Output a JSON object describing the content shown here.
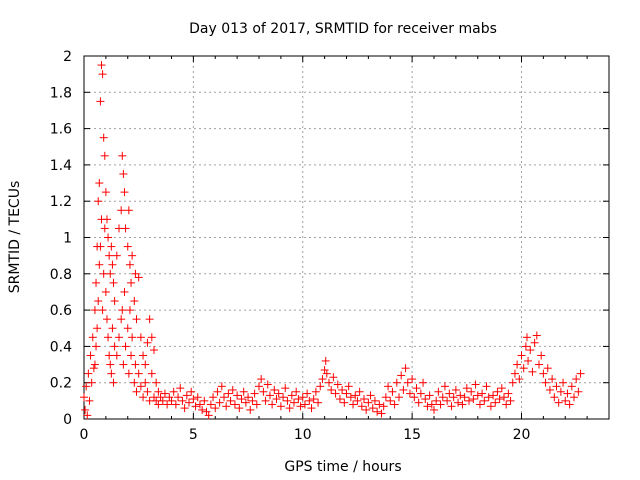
{
  "chart_data": {
    "type": "scatter",
    "title": "Day 013 of 2017, SRMTID for receiver mabs",
    "xlabel": "GPS time / hours",
    "ylabel": "SRMTID / TECUs",
    "xlim": [
      0,
      24
    ],
    "ylim": [
      0,
      2
    ],
    "x_ticks": [
      0,
      5,
      10,
      15,
      20
    ],
    "y_ticks": [
      0,
      0.2,
      0.4,
      0.6,
      0.8,
      1,
      1.2,
      1.4,
      1.6,
      1.8,
      2
    ],
    "x_tick_labels": [
      "0",
      "5",
      "10",
      "15",
      "20"
    ],
    "y_tick_labels": [
      "0",
      "0.2",
      "0.4",
      "0.6",
      "0.8",
      "1",
      "1.2",
      "1.4",
      "1.6",
      "1.8",
      "2"
    ],
    "grid": true,
    "marker": "+",
    "color": "#ff0000",
    "points": [
      [
        0.0,
        0.12
      ],
      [
        0.05,
        0.05
      ],
      [
        0.1,
        0.18
      ],
      [
        0.15,
        0.02
      ],
      [
        0.2,
        0.25
      ],
      [
        0.25,
        0.1
      ],
      [
        0.3,
        0.35
      ],
      [
        0.35,
        0.2
      ],
      [
        0.4,
        0.45
      ],
      [
        0.45,
        0.28
      ],
      [
        0.5,
        0.6
      ],
      [
        0.5,
        0.3
      ],
      [
        0.55,
        0.75
      ],
      [
        0.55,
        0.4
      ],
      [
        0.6,
        0.95
      ],
      [
        0.6,
        0.5
      ],
      [
        0.65,
        1.2
      ],
      [
        0.65,
        0.65
      ],
      [
        0.7,
        1.3
      ],
      [
        0.7,
        0.85
      ],
      [
        0.75,
        1.75
      ],
      [
        0.75,
        0.95
      ],
      [
        0.8,
        1.95
      ],
      [
        0.8,
        1.1
      ],
      [
        0.85,
        1.9
      ],
      [
        0.85,
        0.6
      ],
      [
        0.9,
        1.55
      ],
      [
        0.9,
        0.8
      ],
      [
        0.95,
        1.45
      ],
      [
        0.95,
        1.05
      ],
      [
        1.0,
        1.25
      ],
      [
        1.0,
        0.7
      ],
      [
        1.05,
        1.1
      ],
      [
        1.05,
        0.55
      ],
      [
        1.1,
        1.0
      ],
      [
        1.1,
        0.45
      ],
      [
        1.15,
        0.9
      ],
      [
        1.15,
        0.35
      ],
      [
        1.2,
        0.8
      ],
      [
        1.2,
        0.3
      ],
      [
        1.25,
        0.95
      ],
      [
        1.25,
        0.25
      ],
      [
        1.3,
        0.85
      ],
      [
        1.3,
        0.5
      ],
      [
        1.35,
        0.75
      ],
      [
        1.35,
        0.2
      ],
      [
        1.4,
        0.65
      ],
      [
        1.4,
        0.4
      ],
      [
        1.5,
        0.9
      ],
      [
        1.5,
        0.35
      ],
      [
        1.6,
        1.05
      ],
      [
        1.6,
        0.45
      ],
      [
        1.7,
        1.15
      ],
      [
        1.7,
        0.55
      ],
      [
        1.75,
        1.45
      ],
      [
        1.75,
        0.6
      ],
      [
        1.8,
        1.35
      ],
      [
        1.8,
        0.3
      ],
      [
        1.85,
        1.25
      ],
      [
        1.85,
        0.7
      ],
      [
        1.9,
        1.05
      ],
      [
        1.9,
        0.4
      ],
      [
        2.0,
        0.95
      ],
      [
        2.0,
        0.5
      ],
      [
        2.05,
        1.15
      ],
      [
        2.05,
        0.25
      ],
      [
        2.1,
        0.85
      ],
      [
        2.1,
        0.6
      ],
      [
        2.15,
        0.75
      ],
      [
        2.15,
        0.35
      ],
      [
        2.2,
        0.9
      ],
      [
        2.2,
        0.45
      ],
      [
        2.3,
        0.65
      ],
      [
        2.3,
        0.2
      ],
      [
        2.35,
        0.8
      ],
      [
        2.35,
        0.3
      ],
      [
        2.4,
        0.55
      ],
      [
        2.4,
        0.15
      ],
      [
        2.5,
        0.78
      ],
      [
        2.5,
        0.25
      ],
      [
        2.6,
        0.45
      ],
      [
        2.6,
        0.18
      ],
      [
        2.7,
        0.35
      ],
      [
        2.7,
        0.12
      ],
      [
        2.8,
        0.3
      ],
      [
        2.8,
        0.2
      ],
      [
        2.9,
        0.42
      ],
      [
        2.9,
        0.15
      ],
      [
        3.0,
        0.55
      ],
      [
        3.0,
        0.1
      ],
      [
        3.1,
        0.45
      ],
      [
        3.1,
        0.25
      ],
      [
        3.2,
        0.38
      ],
      [
        3.2,
        0.12
      ],
      [
        3.3,
        0.2
      ],
      [
        3.3,
        0.1
      ],
      [
        3.4,
        0.15
      ],
      [
        3.4,
        0.08
      ],
      [
        3.5,
        0.12
      ],
      [
        3.6,
        0.1
      ],
      [
        3.7,
        0.14
      ],
      [
        3.8,
        0.08
      ],
      [
        3.9,
        0.12
      ],
      [
        4.0,
        0.1
      ],
      [
        4.1,
        0.15
      ],
      [
        4.2,
        0.08
      ],
      [
        4.3,
        0.12
      ],
      [
        4.4,
        0.17
      ],
      [
        4.5,
        0.1
      ],
      [
        4.6,
        0.06
      ],
      [
        4.7,
        0.13
      ],
      [
        4.8,
        0.09
      ],
      [
        4.9,
        0.15
      ],
      [
        5.0,
        0.11
      ],
      [
        5.1,
        0.07
      ],
      [
        5.2,
        0.12
      ],
      [
        5.3,
        0.08
      ],
      [
        5.4,
        0.05
      ],
      [
        5.5,
        0.1
      ],
      [
        5.6,
        0.04
      ],
      [
        5.7,
        0.02
      ],
      [
        5.8,
        0.08
      ],
      [
        5.9,
        0.12
      ],
      [
        6.0,
        0.06
      ],
      [
        6.1,
        0.15
      ],
      [
        6.2,
        0.09
      ],
      [
        6.3,
        0.18
      ],
      [
        6.4,
        0.12
      ],
      [
        6.5,
        0.07
      ],
      [
        6.6,
        0.14
      ],
      [
        6.7,
        0.1
      ],
      [
        6.8,
        0.16
      ],
      [
        6.9,
        0.08
      ],
      [
        7.0,
        0.13
      ],
      [
        7.1,
        0.06
      ],
      [
        7.2,
        0.11
      ],
      [
        7.3,
        0.15
      ],
      [
        7.4,
        0.09
      ],
      [
        7.5,
        0.12
      ],
      [
        7.6,
        0.05
      ],
      [
        7.7,
        0.1
      ],
      [
        7.8,
        0.14
      ],
      [
        7.9,
        0.08
      ],
      [
        8.0,
        0.18
      ],
      [
        8.1,
        0.22
      ],
      [
        8.2,
        0.15
      ],
      [
        8.3,
        0.1
      ],
      [
        8.4,
        0.19
      ],
      [
        8.5,
        0.13
      ],
      [
        8.6,
        0.08
      ],
      [
        8.7,
        0.16
      ],
      [
        8.8,
        0.11
      ],
      [
        8.9,
        0.14
      ],
      [
        9.0,
        0.07
      ],
      [
        9.1,
        0.12
      ],
      [
        9.2,
        0.17
      ],
      [
        9.3,
        0.1
      ],
      [
        9.4,
        0.06
      ],
      [
        9.5,
        0.13
      ],
      [
        9.6,
        0.09
      ],
      [
        9.7,
        0.15
      ],
      [
        9.8,
        0.11
      ],
      [
        9.9,
        0.07
      ],
      [
        10.0,
        0.12
      ],
      [
        10.1,
        0.08
      ],
      [
        10.2,
        0.14
      ],
      [
        10.3,
        0.1
      ],
      [
        10.4,
        0.06
      ],
      [
        10.5,
        0.11
      ],
      [
        10.6,
        0.15
      ],
      [
        10.7,
        0.09
      ],
      [
        10.8,
        0.18
      ],
      [
        10.9,
        0.22
      ],
      [
        11.0,
        0.27
      ],
      [
        11.05,
        0.32
      ],
      [
        11.1,
        0.25
      ],
      [
        11.2,
        0.2
      ],
      [
        11.3,
        0.16
      ],
      [
        11.4,
        0.23
      ],
      [
        11.5,
        0.14
      ],
      [
        11.6,
        0.19
      ],
      [
        11.7,
        0.11
      ],
      [
        11.8,
        0.16
      ],
      [
        11.9,
        0.09
      ],
      [
        12.0,
        0.14
      ],
      [
        12.1,
        0.18
      ],
      [
        12.2,
        0.12
      ],
      [
        12.3,
        0.08
      ],
      [
        12.4,
        0.13
      ],
      [
        12.5,
        0.1
      ],
      [
        12.6,
        0.15
      ],
      [
        12.7,
        0.07
      ],
      [
        12.8,
        0.11
      ],
      [
        12.9,
        0.05
      ],
      [
        13.0,
        0.09
      ],
      [
        13.1,
        0.13
      ],
      [
        13.2,
        0.06
      ],
      [
        13.3,
        0.1
      ],
      [
        13.4,
        0.04
      ],
      [
        13.5,
        0.08
      ],
      [
        13.6,
        0.03
      ],
      [
        13.7,
        0.07
      ],
      [
        13.8,
        0.12
      ],
      [
        13.9,
        0.18
      ],
      [
        14.0,
        0.1
      ],
      [
        14.1,
        0.15
      ],
      [
        14.2,
        0.08
      ],
      [
        14.3,
        0.2
      ],
      [
        14.4,
        0.12
      ],
      [
        14.5,
        0.24
      ],
      [
        14.6,
        0.16
      ],
      [
        14.7,
        0.28
      ],
      [
        14.8,
        0.2
      ],
      [
        14.9,
        0.14
      ],
      [
        15.0,
        0.22
      ],
      [
        15.1,
        0.12
      ],
      [
        15.2,
        0.17
      ],
      [
        15.3,
        0.09
      ],
      [
        15.4,
        0.14
      ],
      [
        15.5,
        0.2
      ],
      [
        15.6,
        0.11
      ],
      [
        15.7,
        0.07
      ],
      [
        15.8,
        0.13
      ],
      [
        15.9,
        0.08
      ],
      [
        16.0,
        0.05
      ],
      [
        16.1,
        0.1
      ],
      [
        16.2,
        0.15
      ],
      [
        16.3,
        0.08
      ],
      [
        16.4,
        0.12
      ],
      [
        16.5,
        0.18
      ],
      [
        16.6,
        0.1
      ],
      [
        16.7,
        0.14
      ],
      [
        16.8,
        0.07
      ],
      [
        16.9,
        0.12
      ],
      [
        17.0,
        0.16
      ],
      [
        17.1,
        0.09
      ],
      [
        17.2,
        0.13
      ],
      [
        17.3,
        0.08
      ],
      [
        17.4,
        0.12
      ],
      [
        17.5,
        0.17
      ],
      [
        17.6,
        0.1
      ],
      [
        17.7,
        0.15
      ],
      [
        17.8,
        0.11
      ],
      [
        17.9,
        0.19
      ],
      [
        18.0,
        0.13
      ],
      [
        18.1,
        0.08
      ],
      [
        18.2,
        0.14
      ],
      [
        18.3,
        0.1
      ],
      [
        18.4,
        0.18
      ],
      [
        18.5,
        0.12
      ],
      [
        18.6,
        0.07
      ],
      [
        18.7,
        0.13
      ],
      [
        18.8,
        0.09
      ],
      [
        18.9,
        0.15
      ],
      [
        19.0,
        0.11
      ],
      [
        19.1,
        0.17
      ],
      [
        19.2,
        0.12
      ],
      [
        19.3,
        0.08
      ],
      [
        19.4,
        0.14
      ],
      [
        19.5,
        0.1
      ],
      [
        19.6,
        0.2
      ],
      [
        19.7,
        0.25
      ],
      [
        19.8,
        0.3
      ],
      [
        19.9,
        0.22
      ],
      [
        20.0,
        0.35
      ],
      [
        20.1,
        0.28
      ],
      [
        20.2,
        0.4
      ],
      [
        20.25,
        0.45
      ],
      [
        20.3,
        0.32
      ],
      [
        20.4,
        0.38
      ],
      [
        20.5,
        0.26
      ],
      [
        20.6,
        0.42
      ],
      [
        20.7,
        0.46
      ],
      [
        20.8,
        0.3
      ],
      [
        20.9,
        0.35
      ],
      [
        21.0,
        0.25
      ],
      [
        21.1,
        0.2
      ],
      [
        21.2,
        0.28
      ],
      [
        21.3,
        0.16
      ],
      [
        21.4,
        0.22
      ],
      [
        21.5,
        0.12
      ],
      [
        21.6,
        0.18
      ],
      [
        21.7,
        0.09
      ],
      [
        21.8,
        0.15
      ],
      [
        21.9,
        0.2
      ],
      [
        22.0,
        0.1
      ],
      [
        22.1,
        0.14
      ],
      [
        22.2,
        0.08
      ],
      [
        22.3,
        0.18
      ],
      [
        22.4,
        0.12
      ],
      [
        22.5,
        0.22
      ],
      [
        22.6,
        0.15
      ],
      [
        22.7,
        0.25
      ]
    ]
  }
}
